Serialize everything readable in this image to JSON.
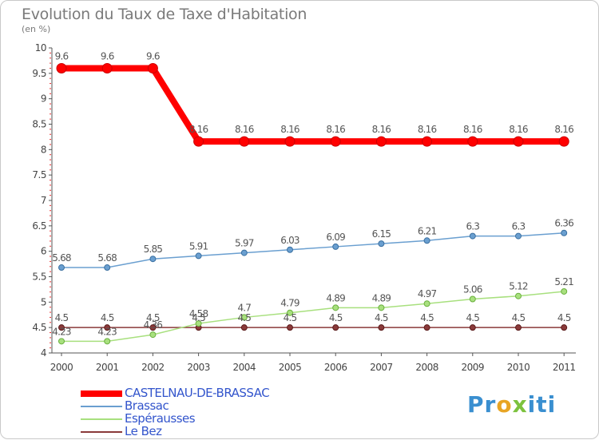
{
  "header": {
    "title": "Evolution du Taux de Taxe d'Habitation",
    "subtitle": "(en %)"
  },
  "logo": {
    "text": "Proxiti",
    "parts": [
      "Pr",
      "o",
      "x",
      "iti"
    ]
  },
  "chart_data": {
    "type": "line",
    "title": "Evolution du Taux de Taxe d'Habitation",
    "subtitle": "(en %)",
    "xlabel": "",
    "ylabel": "",
    "ylim": [
      4,
      10
    ],
    "yticks": [
      "4",
      "4.5",
      "5",
      "5.5",
      "6",
      "6.5",
      "7",
      "7.5",
      "8",
      "8.5",
      "9",
      "9.5",
      "10"
    ],
    "categories": [
      "2000",
      "2001",
      "2002",
      "2003",
      "2004",
      "2005",
      "2006",
      "2007",
      "2008",
      "2009",
      "2010",
      "2011"
    ],
    "legend_position": "bottom-left",
    "series": [
      {
        "name": "CASTELNAU-DE-BRASSAC",
        "color": "#ff0000",
        "values": [
          9.6,
          9.6,
          9.6,
          8.16,
          8.16,
          8.16,
          8.16,
          8.16,
          8.16,
          8.16,
          8.16,
          8.16
        ],
        "labels": [
          "9.6",
          "9.6",
          "9.6",
          "8.16",
          "8.16",
          "8.16",
          "8.16",
          "8.16",
          "8.16",
          "8.16",
          "8.16",
          "8.16"
        ]
      },
      {
        "name": "Brassac",
        "color": "#6a9fd0",
        "values": [
          5.68,
          5.68,
          5.85,
          5.91,
          5.97,
          6.03,
          6.09,
          6.15,
          6.21,
          6.3,
          6.3,
          6.36
        ],
        "labels": [
          "5.68",
          "5.68",
          "5.85",
          "5.91",
          "5.97",
          "6.03",
          "6.09",
          "6.15",
          "6.21",
          "6.3",
          "6.3",
          "6.36"
        ]
      },
      {
        "name": "Espérausses",
        "color": "#a8e07e",
        "values": [
          4.23,
          4.23,
          4.36,
          4.58,
          4.7,
          4.79,
          4.89,
          4.89,
          4.97,
          5.06,
          5.12,
          5.21
        ],
        "labels": [
          "4.23",
          "4.23",
          "4.36",
          "4.58",
          "4.7",
          "4.79",
          "4.89",
          "4.89",
          "4.97",
          "5.06",
          "5.12",
          "5.21"
        ]
      },
      {
        "name": "Le Bez",
        "color": "#8a3a3a",
        "values": [
          4.5,
          4.5,
          4.5,
          4.5,
          4.5,
          4.5,
          4.5,
          4.5,
          4.5,
          4.5,
          4.5,
          4.5
        ],
        "labels": [
          "4.5",
          "4.5",
          "4.5",
          "4.5",
          "4.5",
          "4.5",
          "4.5",
          "4.5",
          "4.5",
          "4.5",
          "4.5",
          "4.5"
        ]
      }
    ]
  }
}
